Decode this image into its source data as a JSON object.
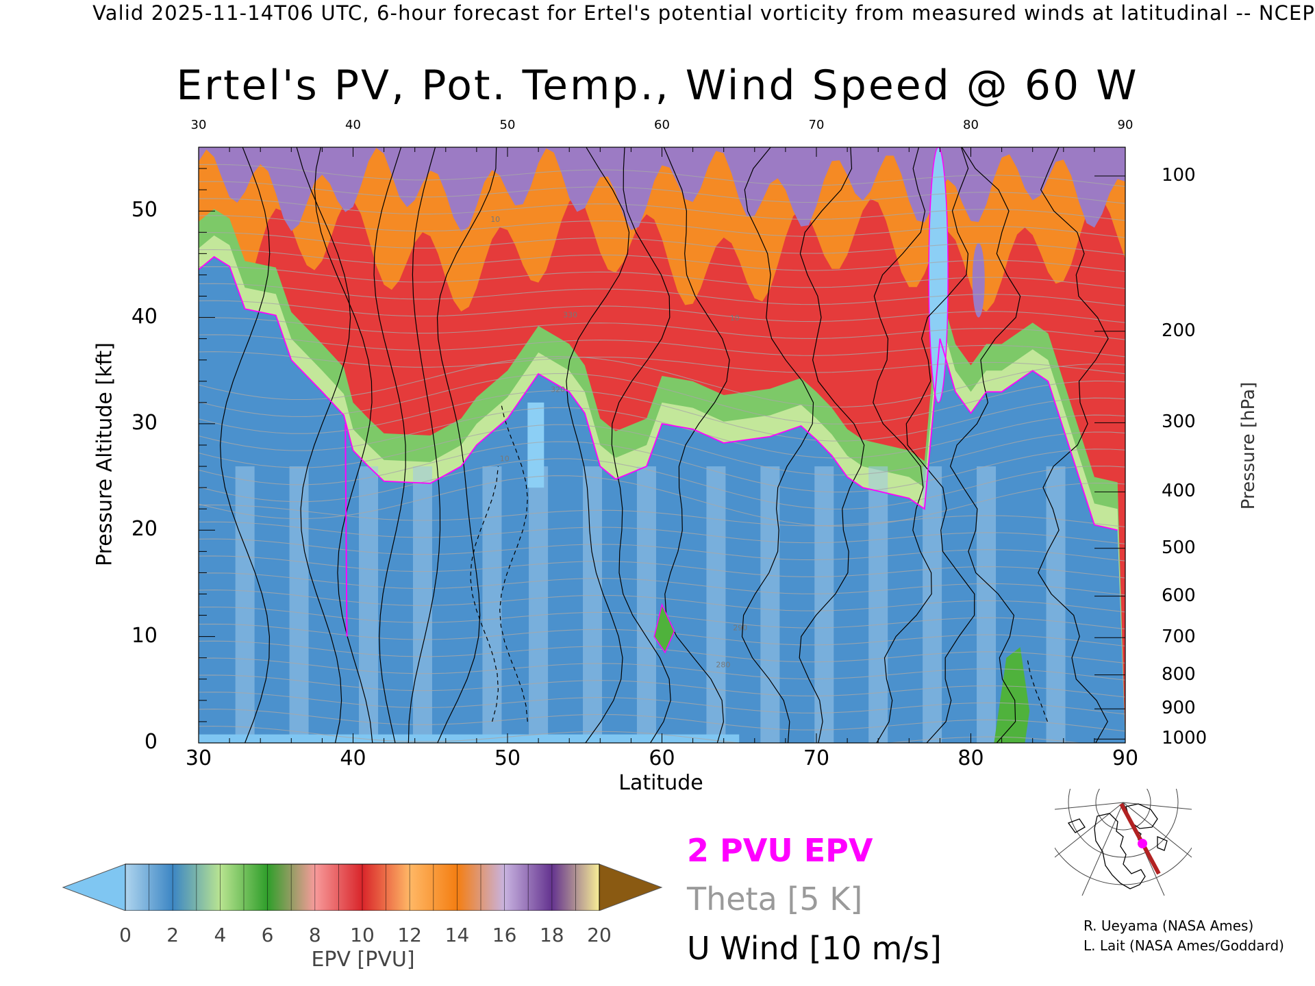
{
  "header": "Valid 2025-11-14T06 UTC, 6-hour forecast for Ertel's potential vorticity from measured winds at latitudinal -- NCEP",
  "chart_data": {
    "type": "heatmap",
    "title": "Ertel's PV, Pot. Temp., Wind Speed @ 60 W",
    "xlabel": "Latitude",
    "ylabel": "Pressure Altitude [kft]",
    "y2label": "Pressure [hPa]",
    "xlim": [
      30,
      90
    ],
    "ylim": [
      0,
      56
    ],
    "x_ticks": [
      "30",
      "40",
      "50",
      "60",
      "70",
      "80",
      "90"
    ],
    "top_ticks": [
      "30",
      "40",
      "50",
      "60",
      "70",
      "80",
      "90"
    ],
    "y_ticks": [
      "0",
      "10",
      "20",
      "30",
      "40",
      "50"
    ],
    "pressure_ticks": [
      {
        "label": "100",
        "alt": 53.3
      },
      {
        "label": "200",
        "alt": 38.7
      },
      {
        "label": "300",
        "alt": 30.1
      },
      {
        "label": "400",
        "alt": 23.6
      },
      {
        "label": "500",
        "alt": 18.3
      },
      {
        "label": "600",
        "alt": 13.8
      },
      {
        "label": "700",
        "alt": 9.9
      },
      {
        "label": "800",
        "alt": 6.4
      },
      {
        "label": "900",
        "alt": 3.2
      },
      {
        "label": "1000",
        "alt": 0.36
      }
    ],
    "pv_2pvu_boundary": [
      [
        30,
        44.5
      ],
      [
        31,
        45.7
      ],
      [
        32,
        44.8
      ],
      [
        33,
        40.8
      ],
      [
        35,
        40.2
      ],
      [
        36,
        36
      ],
      [
        38,
        33
      ],
      [
        39.4,
        30.8
      ],
      [
        40,
        27.5
      ],
      [
        41,
        26
      ],
      [
        42,
        24.6
      ],
      [
        45,
        24.4
      ],
      [
        47,
        26
      ],
      [
        48,
        28
      ],
      [
        50,
        30.5
      ],
      [
        52,
        34.7
      ],
      [
        54,
        33
      ],
      [
        55,
        31
      ],
      [
        56,
        26
      ],
      [
        57,
        24.8
      ],
      [
        59,
        26
      ],
      [
        60,
        30
      ],
      [
        62,
        29.5
      ],
      [
        64,
        28.2
      ],
      [
        67,
        28.8
      ],
      [
        69,
        29.8
      ],
      [
        70,
        28.5
      ],
      [
        71,
        27
      ],
      [
        72,
        25
      ],
      [
        73,
        24
      ],
      [
        76,
        23
      ],
      [
        77,
        22
      ],
      [
        78,
        38
      ],
      [
        79,
        33
      ],
      [
        80,
        31
      ],
      [
        81,
        33
      ],
      [
        82,
        33
      ],
      [
        84,
        35
      ],
      [
        85,
        34
      ],
      [
        87,
        25
      ],
      [
        88,
        20.5
      ],
      [
        89.5,
        20
      ]
    ],
    "theta_labels": [
      {
        "x": 49.5,
        "y": 26.5,
        "text": "10"
      },
      {
        "x": 48.9,
        "y": 49,
        "text": "10"
      },
      {
        "x": 52.8,
        "y": 33,
        "text": "320"
      },
      {
        "x": 53.6,
        "y": 40,
        "text": "330"
      },
      {
        "x": 64.4,
        "y": 39.7,
        "text": "10"
      },
      {
        "x": 64.6,
        "y": 10.6,
        "text": "290"
      },
      {
        "x": 63.5,
        "y": 7.1,
        "text": "280"
      }
    ],
    "legend": {
      "colorbar_label": "EPV [PVU]",
      "colorbar_ticks": [
        "0",
        "2",
        "4",
        "6",
        "8",
        "10",
        "12",
        "14",
        "16",
        "18",
        "20"
      ],
      "colorbar_colors": [
        "#aed4ee",
        "#3c86c4",
        "#b9e491",
        "#2f9e2a",
        "#f79b9b",
        "#d9252a",
        "#ffb866",
        "#f47e12",
        "#c8b3e0",
        "#64338f",
        "#f8ee96",
        "#8a5a12"
      ],
      "under_color": "#7fc6f2",
      "over_color": "#8a5a12",
      "entries": [
        {
          "text": "2 PVU EPV",
          "color": "#ff00ff"
        },
        {
          "text": "Theta [5 K]",
          "color": "#9a9a9a"
        },
        {
          "text": "U Wind [10 m/s]",
          "color": "#000000"
        }
      ]
    },
    "credits": [
      "R. Ueyama (NASA Ames)",
      "L. Lait (NASA Ames/Goddard)"
    ]
  }
}
